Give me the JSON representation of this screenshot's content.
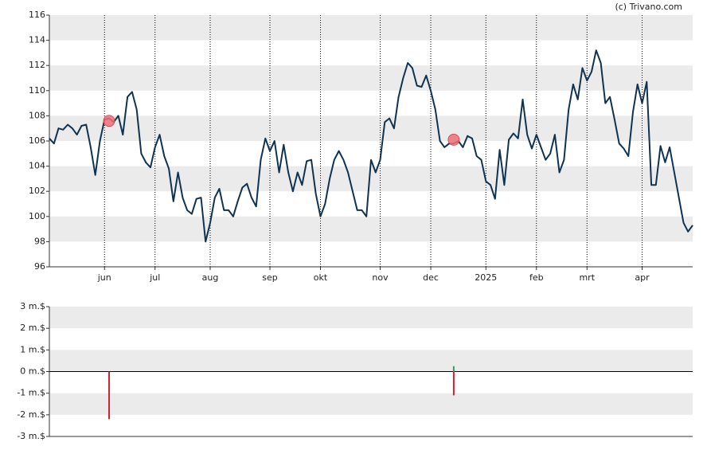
{
  "chart_data": [
    {
      "type": "line",
      "credit": "(c) Trivano.com",
      "categories": [
        null,
        null,
        null,
        null,
        null,
        null,
        null,
        null,
        null,
        null,
        null,
        null,
        "jun",
        null,
        null,
        null,
        null,
        null,
        null,
        null,
        null,
        null,
        null,
        "jul",
        null,
        null,
        null,
        null,
        null,
        null,
        null,
        null,
        null,
        null,
        null,
        "aug",
        null,
        null,
        null,
        null,
        null,
        null,
        null,
        null,
        null,
        null,
        null,
        null,
        "sep",
        null,
        null,
        null,
        null,
        null,
        null,
        null,
        null,
        null,
        null,
        "okt",
        null,
        null,
        null,
        null,
        null,
        null,
        null,
        null,
        null,
        null,
        null,
        null,
        "nov",
        null,
        null,
        null,
        null,
        null,
        null,
        null,
        null,
        null,
        null,
        "dec",
        null,
        null,
        null,
        null,
        null,
        null,
        null,
        null,
        null,
        null,
        null,
        "2025",
        null,
        null,
        null,
        null,
        null,
        null,
        null,
        null,
        null,
        null,
        "feb",
        null,
        null,
        null,
        null,
        null,
        null,
        null,
        null,
        null,
        null,
        "mrt",
        null,
        null,
        null,
        null,
        null,
        null,
        null,
        null,
        null,
        null,
        null,
        "apr",
        null,
        null,
        null,
        null,
        null,
        null,
        null,
        null,
        null,
        null,
        null
      ],
      "series": [
        {
          "color": "#0f3350",
          "style": "line",
          "values": [
            106.2,
            105.8,
            107,
            106.9,
            107.3,
            107,
            106.5,
            107.2,
            107.3,
            105.5,
            103.3,
            106,
            107.7,
            107.8,
            107.5,
            108,
            106.5,
            109.5,
            109.9,
            108.5,
            105,
            104.3,
            103.9,
            105.5,
            106.5,
            104.8,
            103.8,
            101.2,
            103.5,
            101.5,
            100.5,
            100.2,
            101.4,
            101.5,
            98,
            99.5,
            101.5,
            102.2,
            100.5,
            100.5,
            100,
            101.2,
            102.3,
            102.6,
            101.5,
            100.8,
            104.5,
            106.2,
            105.2,
            106,
            103.5,
            105.7,
            103.5,
            102,
            103.5,
            102.5,
            104.4,
            104.5,
            101.8,
            100,
            101,
            103,
            104.5,
            105.2,
            104.5,
            103.5,
            102,
            100.5,
            100.5,
            100,
            104.5,
            103.5,
            104.5,
            107.5,
            107.8,
            107,
            109.5,
            111,
            112.2,
            111.8,
            110.4,
            110.3,
            111.2,
            110,
            108.5,
            106,
            105.5,
            105.8,
            105.8,
            106,
            105.5,
            106.4,
            106.2,
            104.8,
            104.5,
            102.8,
            102.5,
            101.4,
            105.3,
            102.5,
            106.1,
            106.6,
            106.2,
            109.3,
            106.5,
            105.4,
            106.5,
            105.5,
            104.5,
            105,
            106.5,
            103.5,
            104.5,
            108.5,
            110.5,
            109.3,
            111.8,
            110.8,
            111.5,
            113.2,
            112.2,
            109,
            109.5,
            107.7,
            105.8,
            105.4,
            104.8,
            108.3,
            110.5,
            109,
            110.7,
            102.5,
            102.5,
            105.6,
            104.3,
            105.5,
            103.5,
            101.5,
            99.5,
            98.8,
            99.3
          ]
        },
        {
          "color": "#f07078",
          "style": "dot",
          "values": [
            null,
            null,
            null,
            null,
            null,
            null,
            null,
            null,
            null,
            null,
            null,
            null,
            null,
            107.6,
            null,
            null,
            null,
            null,
            null,
            null,
            null,
            null,
            null,
            null,
            null,
            null,
            null,
            null,
            null,
            null,
            null,
            null,
            null,
            null,
            null,
            null,
            null,
            null,
            null,
            null,
            null,
            null,
            null,
            null,
            null,
            null,
            null,
            null,
            null,
            null,
            null,
            null,
            null,
            null,
            null,
            null,
            null,
            null,
            null,
            null,
            null,
            null,
            null,
            null,
            null,
            null,
            null,
            null,
            null,
            null,
            null,
            null,
            null,
            null,
            null,
            null,
            null,
            null,
            null,
            null,
            null,
            null,
            null,
            null,
            null,
            null,
            null,
            null,
            106.1,
            null,
            null,
            null,
            null,
            null,
            null,
            null,
            null,
            null,
            null,
            null,
            null,
            null,
            null,
            null,
            null,
            null,
            null,
            null,
            null,
            null,
            null,
            null,
            null,
            null,
            null,
            null,
            null,
            null,
            null,
            null,
            null,
            null,
            null,
            null,
            null,
            null,
            null,
            null,
            null,
            null,
            null,
            null,
            null,
            null,
            null,
            null,
            null,
            null,
            null,
            null,
            null
          ]
        }
      ],
      "ylim": [
        96,
        116
      ],
      "yticks": [
        96,
        98,
        100,
        102,
        104,
        106,
        108,
        110,
        112,
        114,
        116
      ],
      "grid": "bands"
    },
    {
      "type": "bar",
      "series": [
        {
          "color": "#3a9a5a",
          "values": [
            null,
            null,
            null,
            null,
            null,
            null,
            null,
            null,
            null,
            null,
            null,
            null,
            null,
            null,
            null,
            null,
            null,
            null,
            null,
            null,
            null,
            null,
            null,
            null,
            null,
            null,
            null,
            null,
            null,
            null,
            null,
            null,
            null,
            null,
            null,
            null,
            null,
            null,
            null,
            null,
            null,
            null,
            null,
            null,
            null,
            null,
            null,
            null,
            null,
            null,
            null,
            null,
            null,
            null,
            null,
            null,
            null,
            null,
            null,
            null,
            null,
            null,
            null,
            null,
            null,
            null,
            null,
            null,
            null,
            null,
            null,
            null,
            null,
            null,
            null,
            null,
            null,
            null,
            null,
            null,
            null,
            null,
            null,
            null,
            null,
            null,
            null,
            null,
            0.25,
            null,
            null,
            null,
            null,
            null,
            null,
            null,
            null,
            null,
            null,
            null,
            null,
            null,
            null,
            null,
            null,
            null,
            null,
            null,
            null,
            null,
            null,
            null,
            null,
            null,
            null,
            null,
            null,
            null,
            null,
            null,
            null,
            null,
            null,
            null,
            null,
            null,
            null,
            null,
            null,
            null,
            null,
            null,
            null,
            null,
            null,
            null,
            null,
            null,
            null,
            null,
            null
          ]
        },
        {
          "color": "#cc2233",
          "values": [
            null,
            null,
            null,
            null,
            null,
            null,
            null,
            null,
            null,
            null,
            null,
            null,
            null,
            -2.2,
            null,
            null,
            null,
            null,
            null,
            null,
            null,
            null,
            null,
            null,
            null,
            null,
            null,
            null,
            null,
            null,
            null,
            null,
            null,
            null,
            null,
            null,
            null,
            null,
            null,
            null,
            null,
            null,
            null,
            null,
            null,
            null,
            null,
            null,
            null,
            null,
            null,
            null,
            null,
            null,
            null,
            null,
            null,
            null,
            null,
            null,
            null,
            null,
            null,
            null,
            null,
            null,
            null,
            null,
            null,
            null,
            null,
            null,
            null,
            null,
            null,
            null,
            null,
            null,
            null,
            null,
            null,
            null,
            null,
            null,
            null,
            null,
            null,
            null,
            -1.1,
            null,
            null,
            null,
            null,
            null,
            null,
            null,
            null,
            null,
            null,
            null,
            null,
            null,
            null,
            null,
            null,
            null,
            null,
            null,
            null,
            null,
            null,
            null,
            null,
            null,
            null,
            null,
            null,
            null,
            null,
            null,
            null,
            null,
            null,
            null,
            null,
            null,
            null,
            null,
            null,
            null,
            null,
            null,
            null,
            null,
            null,
            null,
            null,
            null,
            null,
            null,
            null
          ]
        }
      ],
      "ylim": [
        -3,
        3
      ],
      "yticks": [
        {
          "value": -3,
          "label": "-3 m.$"
        },
        {
          "value": -2,
          "label": "-2 m.$"
        },
        {
          "value": -1,
          "label": "-1 m.$"
        },
        {
          "value": 0,
          "label": "0 m.$"
        },
        {
          "value": 1,
          "label": "1 m.$"
        },
        {
          "value": 2,
          "label": "2 m.$"
        },
        {
          "value": 3,
          "label": "3 m.$"
        }
      ],
      "grid": "bands"
    }
  ]
}
